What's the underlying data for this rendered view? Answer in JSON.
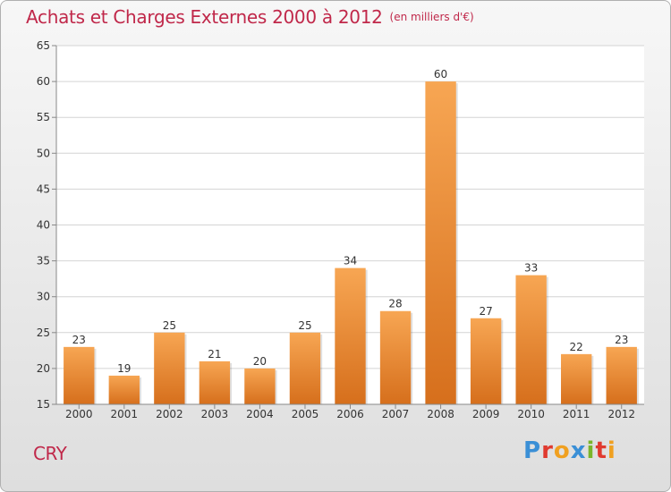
{
  "chart_data": {
    "type": "bar",
    "title": "Achats et Charges Externes 2000 à 2012",
    "unit": "(en milliers d'€)",
    "categories": [
      "2000",
      "2001",
      "2002",
      "2003",
      "2004",
      "2005",
      "2006",
      "2007",
      "2008",
      "2009",
      "2010",
      "2011",
      "2012"
    ],
    "values": [
      23,
      19,
      25,
      21,
      20,
      25,
      34,
      28,
      60,
      27,
      33,
      22,
      23
    ],
    "ylim": [
      15,
      65
    ],
    "yticks": [
      15,
      20,
      25,
      30,
      35,
      40,
      45,
      50,
      55,
      60,
      65
    ],
    "grid": true,
    "bar_color_top": "#f7a653",
    "bar_color_bottom": "#d66f1c"
  },
  "footer": {
    "commune": "CRY",
    "brand_letters": [
      {
        "char": "P",
        "color": "#3a8fd6"
      },
      {
        "char": "r",
        "color": "#e03a2f"
      },
      {
        "char": "o",
        "color": "#f0a020"
      },
      {
        "char": "x",
        "color": "#3a8fd6"
      },
      {
        "char": "i",
        "color": "#7ab52a"
      },
      {
        "char": "t",
        "color": "#e03a2f"
      },
      {
        "char": "i",
        "color": "#f0a020"
      }
    ]
  }
}
